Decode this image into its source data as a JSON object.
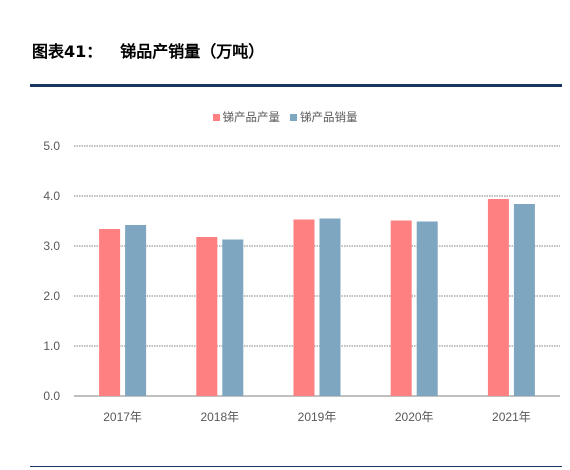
{
  "figure": {
    "label": "图表41：",
    "title": "锑品产销量（万吨）"
  },
  "colors": {
    "production": "#ff8080",
    "sales": "#7fa6c0",
    "rule": "#17375e",
    "grid": "#808080",
    "text": "#595959"
  },
  "chart_data": {
    "type": "bar",
    "title": "锑品产销量（万吨）",
    "categories": [
      "2017年",
      "2018年",
      "2019年",
      "2020年",
      "2021年"
    ],
    "series": [
      {
        "name": "锑产品产量",
        "values": [
          3.34,
          3.18,
          3.53,
          3.51,
          3.94
        ]
      },
      {
        "name": "锑产品销量",
        "values": [
          3.42,
          3.13,
          3.55,
          3.49,
          3.84
        ]
      }
    ],
    "ylim": [
      0,
      5.0
    ],
    "yticks": [
      "0.0",
      "1.0",
      "2.0",
      "3.0",
      "4.0",
      "5.0"
    ],
    "xlabel": "",
    "ylabel": "",
    "grid": true,
    "legend": "top-center"
  }
}
